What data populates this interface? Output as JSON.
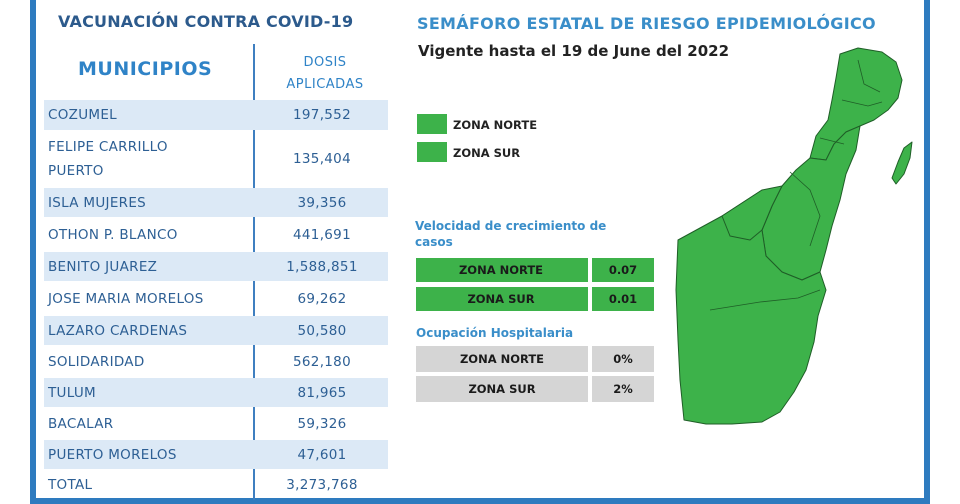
{
  "vaccination": {
    "title": "VACUNACIÓN CONTRA COVID-19",
    "col_municipios": "MUNICIPIOS",
    "col_dosis_line1": "DOSIS",
    "col_dosis_line2": "APLICADAS",
    "rows": [
      {
        "municipio": "COZUMEL",
        "dosis": "197,552"
      },
      {
        "municipio": "FELIPE CARRILLO PUERTO",
        "dosis": "135,404"
      },
      {
        "municipio": "ISLA MUJERES",
        "dosis": "39,356"
      },
      {
        "municipio": "OTHON P. BLANCO",
        "dosis": "441,691"
      },
      {
        "municipio": "BENITO JUAREZ",
        "dosis": "1,588,851"
      },
      {
        "municipio": "JOSE MARIA MORELOS",
        "dosis": "69,262"
      },
      {
        "municipio": "LAZARO CARDENAS",
        "dosis": "50,580"
      },
      {
        "municipio": "SOLIDARIDAD",
        "dosis": "562,180"
      },
      {
        "municipio": "TULUM",
        "dosis": "81,965"
      },
      {
        "municipio": "BACALAR",
        "dosis": "59,326"
      },
      {
        "municipio": "PUERTO MORELOS",
        "dosis": "47,601"
      },
      {
        "municipio": "TOTAL",
        "dosis": "3,273,768"
      }
    ]
  },
  "semaforo": {
    "title": "SEMÁFORO ESTATAL DE RIESGO EPIDEMIOLÓGICO",
    "vigente": "Vigente hasta el 19 de June del 2022",
    "legend": [
      {
        "label": "ZONA NORTE",
        "color": "#3db24a"
      },
      {
        "label": "ZONA SUR",
        "color": "#3db24a"
      }
    ],
    "velocidad_title": "Velocidad de crecimiento de casos",
    "velocidad": [
      {
        "zona": "ZONA NORTE",
        "valor": "0.07"
      },
      {
        "zona": "ZONA SUR",
        "valor": "0.01"
      }
    ],
    "ocupacion_title": "Ocupación Hospitalaria",
    "ocupacion": [
      {
        "zona": "ZONA NORTE",
        "valor": "0%"
      },
      {
        "zona": "ZONA SUR",
        "valor": "2%"
      }
    ]
  },
  "colors": {
    "frame": "#2e7bbf",
    "heading_blue": "#2f83c7",
    "row_shade": "#dce9f6",
    "zone_green": "#3db24a",
    "occupancy_gray": "#d5d5d5"
  }
}
